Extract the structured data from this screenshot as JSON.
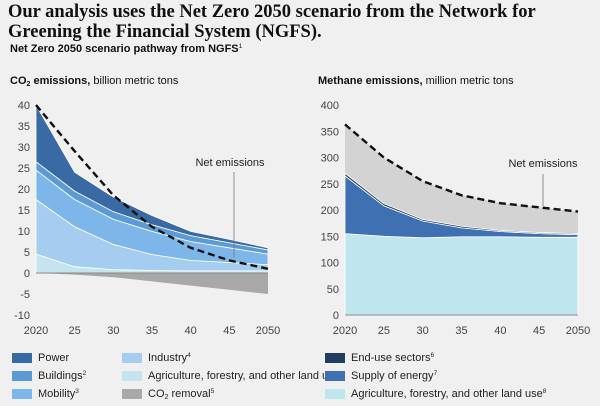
{
  "header": {
    "headline": "Our analysis uses the Net Zero 2050 scenario from the Network for Greening the Financial System (NGFS).",
    "subtitle_text": "Net Zero 2050 scenario pathway from NGFS",
    "subtitle_note": "1"
  },
  "colors": {
    "power": "#3a6aa3",
    "buildings": "#5c9ad6",
    "mobility": "#7db6e8",
    "industry": "#a4cdef",
    "afolu": "#c4e4f0",
    "co2_removal": "#a8a8a8",
    "end_use": "#1f3e62",
    "supply_of_energy": "#3f70b2",
    "methane_afolu": "#bfe5ef",
    "net_emissions_area": "#d3d3d3"
  },
  "chart_data": [
    {
      "type": "area",
      "title_bold": "CO",
      "title_sub": "2",
      "title_bold_end": " emissions,",
      "title_rest": " billion metric tons",
      "x": [
        2020,
        2025,
        2030,
        2035,
        2040,
        2045,
        2050
      ],
      "x_tick_labels": [
        "2020",
        "25",
        "30",
        "35",
        "40",
        "45",
        "2050"
      ],
      "ylim": [
        -10,
        40
      ],
      "y_ticks": [
        -10,
        -5,
        0,
        5,
        10,
        15,
        20,
        25,
        30,
        35,
        40
      ],
      "negative_series": [
        {
          "name": "CO2 removal",
          "values": [
            0,
            -0.4,
            -1.0,
            -2.0,
            -3.0,
            -4.0,
            -5.0
          ]
        }
      ],
      "series": [
        {
          "name": "Agriculture, forestry, and other land use",
          "values": [
            4.5,
            1.5,
            0.8,
            0.6,
            0.5,
            0.5,
            0.5
          ]
        },
        {
          "name": "Industry",
          "values": [
            13.0,
            9.5,
            6.0,
            3.8,
            2.5,
            2.0,
            1.5
          ]
        },
        {
          "name": "Mobility",
          "values": [
            7.0,
            6.5,
            6.0,
            5.5,
            4.5,
            3.5,
            2.5
          ]
        },
        {
          "name": "Buildings",
          "values": [
            2.0,
            2.0,
            1.8,
            1.6,
            1.4,
            1.2,
            1.0
          ]
        },
        {
          "name": "Power",
          "values": [
            13.5,
            4.5,
            3.5,
            2.2,
            1.0,
            0.8,
            0.5
          ]
        }
      ],
      "net_emissions": {
        "label": "Net emissions",
        "values": [
          40,
          29,
          18.5,
          11,
          6,
          3,
          1
        ]
      }
    },
    {
      "type": "area",
      "title_bold": "Methane emissions,",
      "title_rest": " million metric tons",
      "x": [
        2020,
        2025,
        2030,
        2035,
        2040,
        2045,
        2050
      ],
      "x_tick_labels": [
        "2020",
        "25",
        "30",
        "35",
        "40",
        "45",
        "2050"
      ],
      "ylim": [
        0,
        400
      ],
      "y_ticks": [
        0,
        50,
        100,
        150,
        200,
        250,
        300,
        350,
        400
      ],
      "series": [
        {
          "name": "Agriculture, forestry, and other land use",
          "values": [
            155,
            150,
            147,
            149,
            149,
            148,
            148
          ]
        },
        {
          "name": "Supply of energy",
          "values": [
            110,
            58,
            32,
            17,
            10,
            7,
            5
          ]
        },
        {
          "name": "End-use sectors",
          "values": [
            5,
            4,
            3,
            3,
            2,
            2,
            2
          ]
        }
      ],
      "net_emissions": {
        "label": "Net emissions",
        "values": [
          363,
          300,
          255,
          228,
          213,
          205,
          197
        ]
      }
    }
  ],
  "legend_co2": [
    {
      "label": "Power",
      "note": "",
      "color_key": "power"
    },
    {
      "label": "Buildings",
      "note": "2",
      "color_key": "buildings"
    },
    {
      "label": "Mobility",
      "note": "3",
      "color_key": "mobility"
    },
    {
      "label": "Industry",
      "note": "4",
      "color_key": "industry"
    },
    {
      "label": "Agriculture, forestry, and other land use",
      "note": "",
      "color_key": "afolu"
    },
    {
      "label": "CO",
      "sub": "2",
      "label_end": " removal",
      "note": "5",
      "color_key": "co2_removal"
    }
  ],
  "legend_methane": [
    {
      "label": "End-use sectors",
      "note": "6",
      "color_key": "end_use"
    },
    {
      "label": "Supply of energy",
      "note": "7",
      "color_key": "supply_of_energy"
    },
    {
      "label": "Agriculture, forestry, and other land use",
      "note": "8",
      "color_key": "methane_afolu"
    }
  ]
}
